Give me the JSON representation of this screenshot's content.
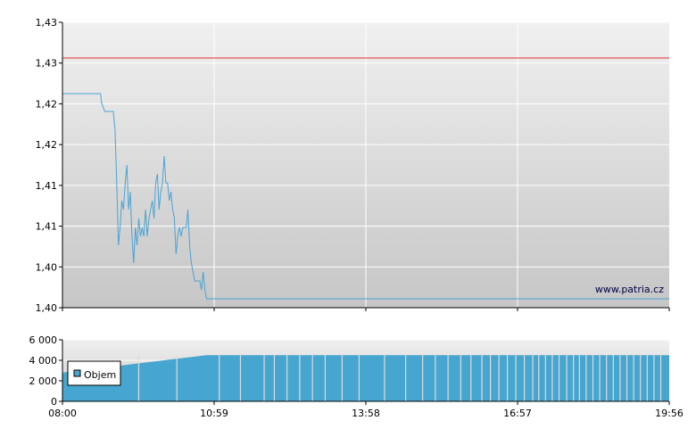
{
  "watermark": "www.patria.cz",
  "colors": {
    "price_line": "#4aa3d4",
    "reference_line": "#e03030",
    "volume_fill": "#46a6cf",
    "grid": "#ffffff",
    "axis": "#000000"
  },
  "chart_data": [
    {
      "type": "line",
      "title": "",
      "xlabel": "",
      "ylabel": "",
      "grid": true,
      "x_ticks": [
        "08:00",
        "10:59",
        "13:58",
        "16:57",
        "19:56"
      ],
      "x_range": [
        "08:00",
        "19:56"
      ],
      "y_ticks": [
        "1,40",
        "1,40",
        "1,41",
        "1,41",
        "1,42",
        "1,42",
        "1,43",
        "1,43"
      ],
      "ylim": [
        1.399,
        1.431
      ],
      "reference_line": 1.427,
      "series": [
        {
          "name": "",
          "x": [
            "08:00",
            "08:45",
            "08:46",
            "08:50",
            "08:52",
            "09:00",
            "09:02",
            "09:04",
            "09:06",
            "09:08",
            "09:10",
            "09:12",
            "09:14",
            "09:16",
            "09:18",
            "09:20",
            "09:22",
            "09:24",
            "09:26",
            "09:28",
            "09:30",
            "09:32",
            "09:34",
            "09:36",
            "09:38",
            "09:40",
            "09:42",
            "09:44",
            "09:46",
            "09:48",
            "09:50",
            "09:52",
            "09:54",
            "09:56",
            "09:58",
            "10:00",
            "10:02",
            "10:04",
            "10:06",
            "10:08",
            "10:10",
            "10:12",
            "10:14",
            "10:16",
            "10:18",
            "10:20",
            "10:22",
            "10:24",
            "10:26",
            "10:28",
            "10:30",
            "10:32",
            "10:34",
            "10:36",
            "10:38",
            "10:40",
            "10:42",
            "10:44",
            "10:46",
            "10:48",
            "10:50",
            "10:52",
            "10:54",
            "10:56",
            "10:58",
            "11:00",
            "11:02",
            "19:56"
          ],
          "y": [
            1.423,
            1.423,
            1.422,
            1.421,
            1.421,
            1.421,
            1.419,
            1.413,
            1.406,
            1.408,
            1.411,
            1.41,
            1.413,
            1.415,
            1.41,
            1.412,
            1.407,
            1.404,
            1.408,
            1.406,
            1.409,
            1.407,
            1.408,
            1.407,
            1.41,
            1.407,
            1.409,
            1.41,
            1.411,
            1.409,
            1.413,
            1.414,
            1.41,
            1.412,
            1.413,
            1.416,
            1.413,
            1.413,
            1.411,
            1.412,
            1.41,
            1.409,
            1.405,
            1.407,
            1.408,
            1.407,
            1.408,
            1.408,
            1.408,
            1.41,
            1.406,
            1.404,
            1.403,
            1.402,
            1.402,
            1.402,
            1.402,
            1.401,
            1.403,
            1.401,
            1.4,
            1.4,
            1.4,
            1.4,
            1.4,
            1.4,
            1.4,
            1.4
          ]
        }
      ]
    },
    {
      "type": "area",
      "title": "",
      "xlabel": "",
      "ylabel": "",
      "grid": true,
      "x_ticks": [
        "08:00",
        "10:59",
        "13:58",
        "16:57",
        "19:56"
      ],
      "y_ticks": [
        "0",
        "2 000",
        "4 000",
        "6 000"
      ],
      "ylim": [
        0,
        6000
      ],
      "legend": "top-left",
      "series": [
        {
          "name": "Objem",
          "x": [
            "08:00",
            "10:50",
            "19:56"
          ],
          "y": [
            2800,
            4500,
            4500
          ]
        }
      ],
      "gaps": [
        "09:30",
        "10:15",
        "11:05",
        "11:30",
        "11:58",
        "12:10",
        "12:25",
        "12:40",
        "12:55",
        "13:10",
        "13:30",
        "13:50",
        "14:20",
        "14:45",
        "15:05",
        "15:20",
        "15:35",
        "15:50",
        "16:02",
        "16:15",
        "16:25",
        "16:35",
        "16:45",
        "16:55",
        "17:05",
        "17:15",
        "17:22",
        "17:30",
        "17:38",
        "17:46",
        "17:55",
        "18:03",
        "18:10",
        "18:18",
        "18:26",
        "18:34",
        "18:42",
        "18:50",
        "18:58",
        "19:06",
        "19:14",
        "19:22",
        "19:30",
        "19:38",
        "19:46"
      ]
    }
  ]
}
